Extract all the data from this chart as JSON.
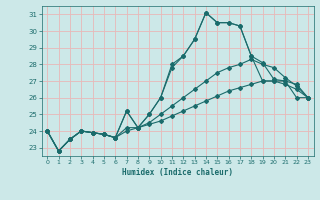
{
  "xlabel": "Humidex (Indice chaleur)",
  "xlim": [
    -0.5,
    23.5
  ],
  "ylim": [
    22.5,
    31.5
  ],
  "yticks": [
    23,
    24,
    25,
    26,
    27,
    28,
    29,
    30,
    31
  ],
  "xticks": [
    0,
    1,
    2,
    3,
    4,
    5,
    6,
    7,
    8,
    9,
    10,
    11,
    12,
    13,
    14,
    15,
    16,
    17,
    18,
    19,
    20,
    21,
    22,
    23
  ],
  "bg_color": "#cce8e8",
  "grid_color": "#e8b8b8",
  "line_color": "#1a6b6b",
  "lines": [
    [
      24.0,
      22.8,
      23.5,
      24.0,
      23.9,
      23.8,
      23.6,
      25.2,
      24.2,
      25.0,
      26.0,
      28.0,
      28.5,
      29.5,
      31.1,
      30.5,
      30.5,
      30.3,
      28.5,
      28.1,
      27.1,
      27.0,
      26.0,
      26.0
    ],
    [
      24.0,
      22.8,
      23.5,
      24.0,
      23.9,
      23.8,
      23.6,
      25.2,
      24.2,
      25.0,
      26.0,
      27.8,
      28.5,
      29.5,
      31.1,
      30.5,
      30.5,
      30.3,
      28.5,
      27.0,
      27.0,
      27.0,
      26.8,
      26.0
    ],
    [
      24.0,
      22.8,
      23.5,
      24.0,
      23.9,
      23.8,
      23.6,
      24.2,
      24.2,
      24.5,
      25.0,
      25.5,
      26.0,
      26.5,
      27.0,
      27.5,
      27.8,
      28.0,
      28.3,
      28.0,
      27.8,
      27.2,
      26.7,
      26.0
    ],
    [
      24.0,
      22.8,
      23.5,
      24.0,
      23.9,
      23.8,
      23.6,
      24.0,
      24.2,
      24.4,
      24.6,
      24.9,
      25.2,
      25.5,
      25.8,
      26.1,
      26.4,
      26.6,
      26.8,
      27.0,
      27.0,
      26.8,
      26.5,
      26.0
    ]
  ]
}
